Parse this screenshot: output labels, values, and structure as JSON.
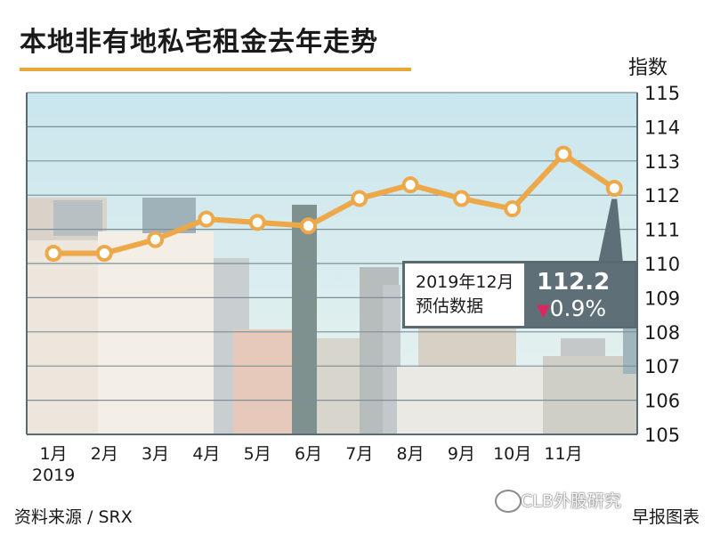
{
  "title": "本地非有地私宅租金去年走势",
  "source_note": "资料来源 / SRX",
  "credit": "早报图表",
  "watermark": "CLB外股研究",
  "callout": {
    "date_label": "2019年12月",
    "estimate_label": "预估数据",
    "value": "112.2",
    "change": "0.9%",
    "change_color": "#e0245e"
  },
  "colors": {
    "line": "#eda84a",
    "point_fill": "#ffffff",
    "sky_top": "#c9e6ee",
    "sky_bottom": "#e9f3ef",
    "gridline": "#7f8f97",
    "title_underline": "#e8a83a"
  },
  "chart_data": {
    "type": "line",
    "ylabel": "指数",
    "ylim": [
      105,
      115
    ],
    "yticks": [
      105,
      106,
      107,
      108,
      109,
      110,
      111,
      112,
      113,
      114,
      115
    ],
    "grid": true,
    "x_labels": [
      "1月",
      "2月",
      "3月",
      "4月",
      "5月",
      "6月",
      "7月",
      "8月",
      "9月",
      "10月",
      "11月",
      ""
    ],
    "x_sublabel": "2019",
    "series": [
      {
        "values": [
          110.3,
          110.3,
          110.7,
          111.3,
          111.2,
          111.1,
          111.9,
          112.3,
          111.9,
          111.6,
          113.2,
          112.2
        ]
      }
    ]
  }
}
